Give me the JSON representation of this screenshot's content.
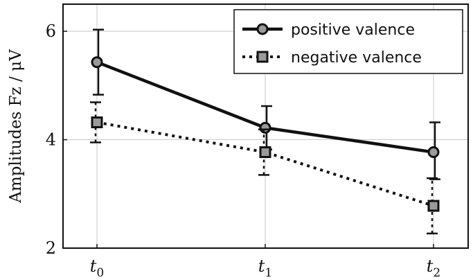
{
  "chart_data": {
    "type": "line",
    "title": "",
    "xlabel": "",
    "ylabel": "Amplitudes Fz / μV",
    "categories": [
      {
        "base": "t",
        "sub": "0"
      },
      {
        "base": "t",
        "sub": "1"
      },
      {
        "base": "t",
        "sub": "2"
      }
    ],
    "ylim": [
      2,
      6.5
    ],
    "yticks": [
      2,
      4,
      6
    ],
    "grid": true,
    "legend_position": "top-right",
    "series": [
      {
        "name": "positive valence",
        "style": "solid",
        "marker": "circle",
        "color": "#111111",
        "values": [
          5.43,
          4.22,
          3.77
        ],
        "error_low": [
          4.83,
          3.82,
          3.27
        ],
        "error_high": [
          6.03,
          4.62,
          4.32
        ]
      },
      {
        "name": "negative valence",
        "style": "dotted",
        "marker": "square",
        "color": "#111111",
        "values": [
          4.32,
          3.77,
          2.78
        ],
        "error_low": [
          3.95,
          3.35,
          2.27
        ],
        "error_high": [
          4.69,
          4.19,
          3.29
        ]
      }
    ]
  }
}
